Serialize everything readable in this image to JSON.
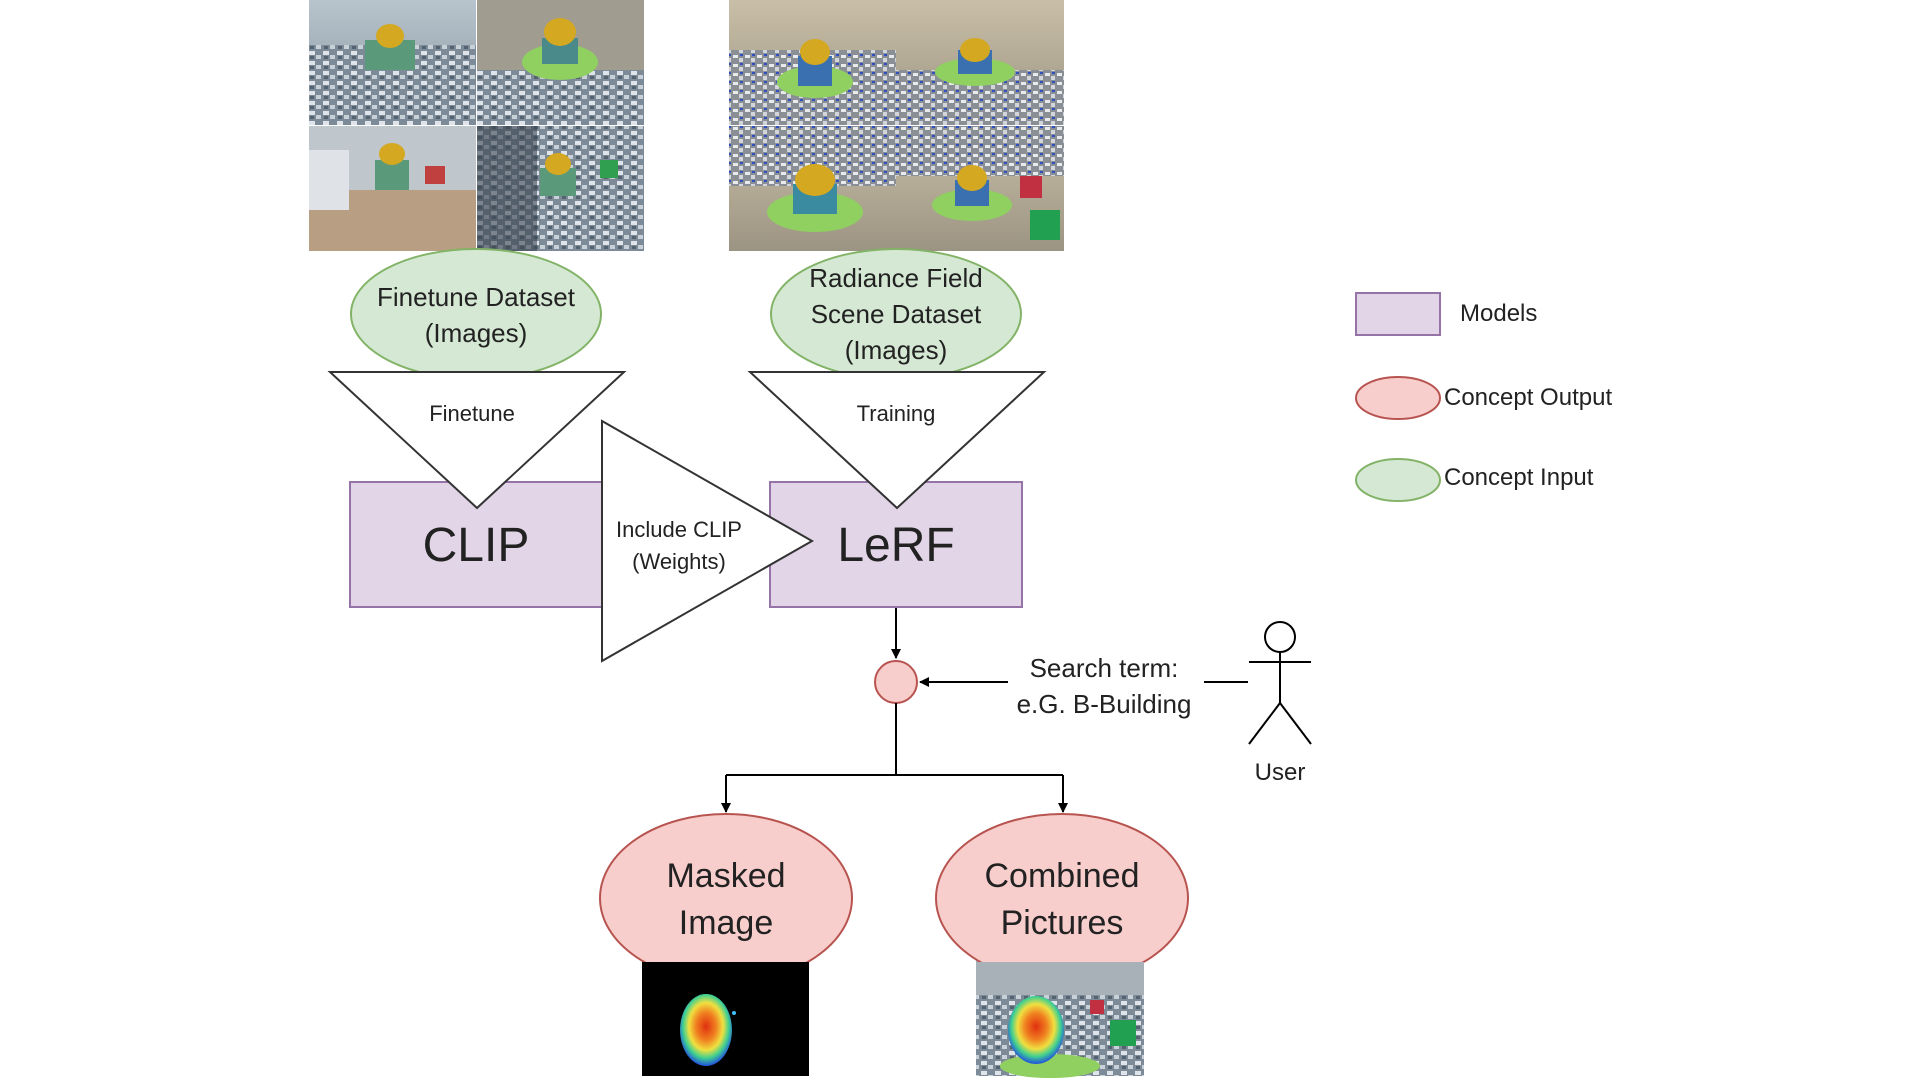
{
  "colors": {
    "model_fill": "#e1d5e7",
    "model_stroke": "#9673a6",
    "input_fill": "#d5e8d4",
    "input_stroke": "#82b366",
    "output_fill": "#f8cecc",
    "output_stroke": "#b85450",
    "line": "#000000"
  },
  "inputs": {
    "finetune_dataset": {
      "line1": "Finetune Dataset",
      "line2": "(Images)"
    },
    "scene_dataset": {
      "line1": "Radiance Field",
      "line2": "Scene Dataset",
      "line3": "(Images)"
    }
  },
  "steps": {
    "finetune": "Finetune",
    "training": "Training",
    "include_clip": {
      "line1": "Include CLIP",
      "line2": "(Weights)"
    }
  },
  "models": {
    "clip": "CLIP",
    "lerf": "LeRF"
  },
  "query": {
    "search_line1": "Search term:",
    "search_line2": "e.G. B-Building",
    "user": "User"
  },
  "outputs": {
    "masked_image": {
      "line1": "Masked",
      "line2": "Image"
    },
    "combined_pictures": {
      "line1": "Combined",
      "line2": "Pictures"
    }
  },
  "legend": {
    "models": "Models",
    "concept_output": "Concept Output",
    "concept_input": "Concept Input"
  }
}
